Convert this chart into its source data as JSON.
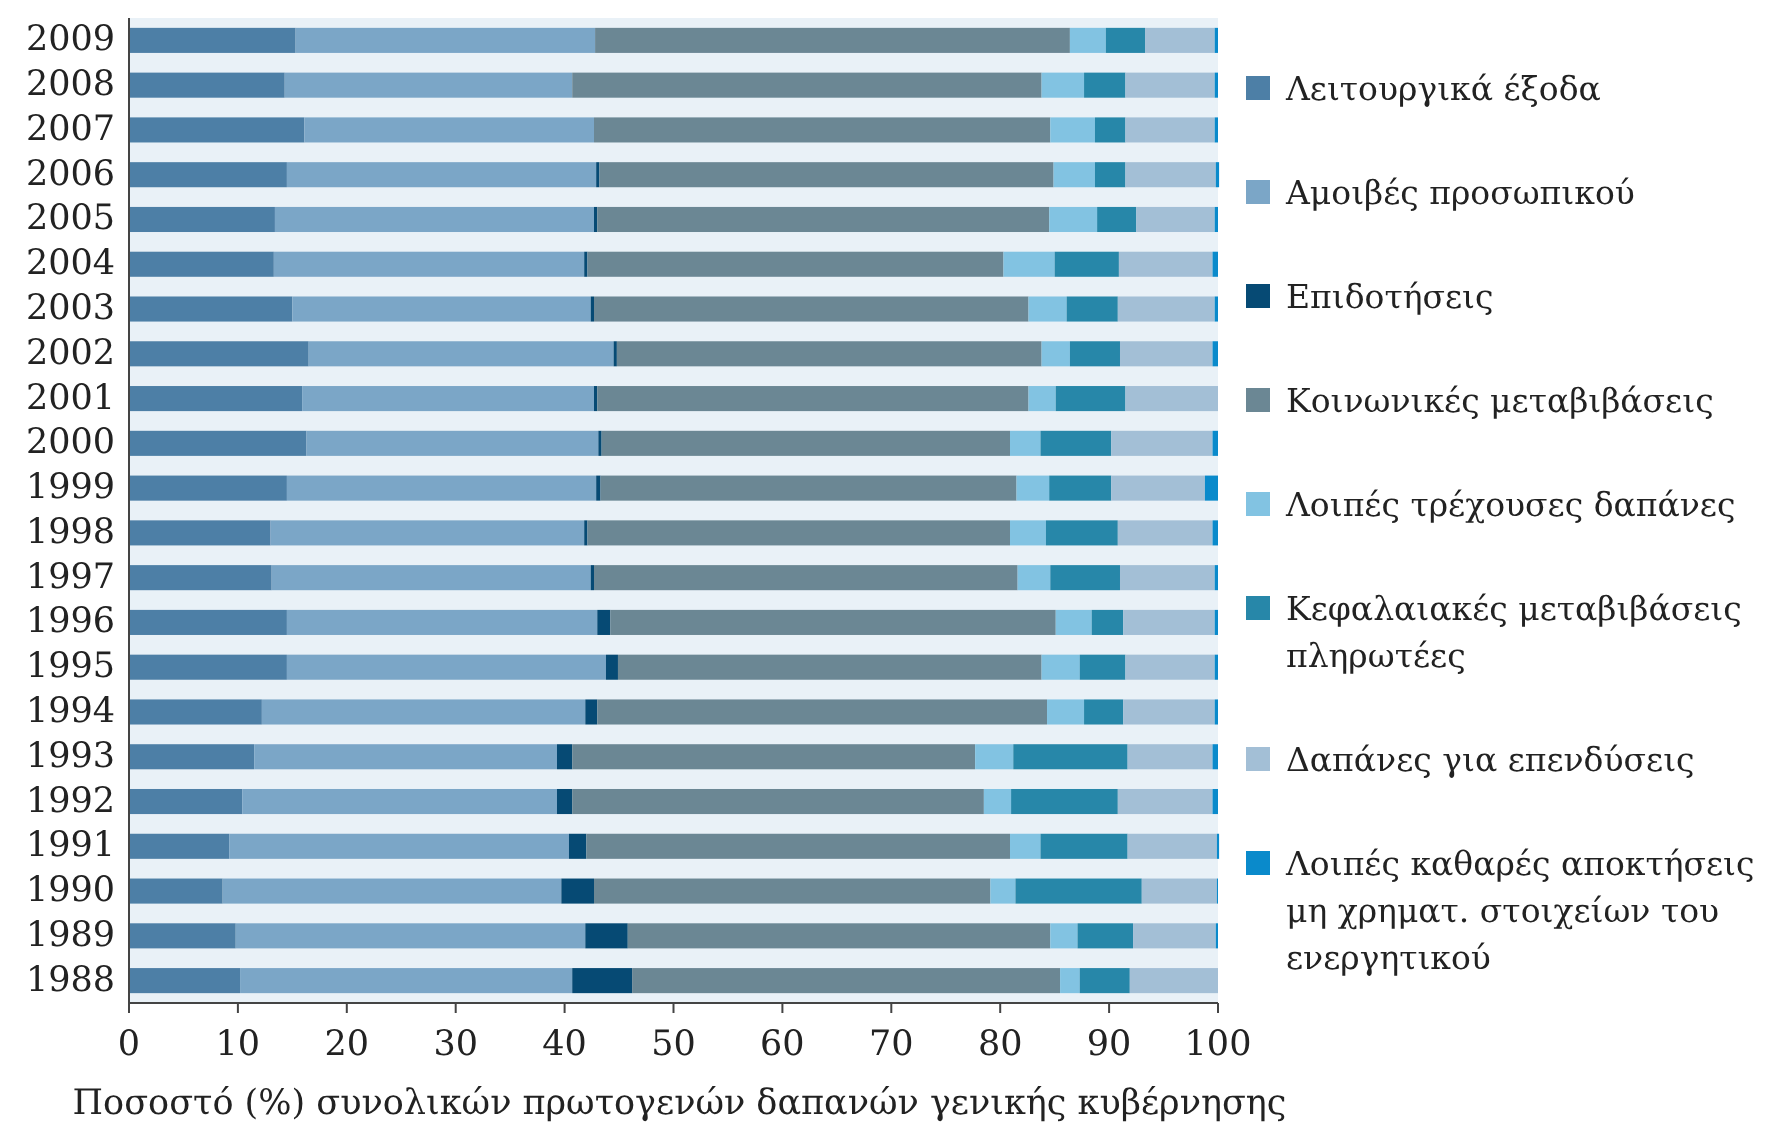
{
  "chart_data": {
    "type": "bar",
    "orientation": "horizontal",
    "stacked": true,
    "categories": [
      "2009",
      "2008",
      "2007",
      "2006",
      "2005",
      "2004",
      "2003",
      "2002",
      "2001",
      "2000",
      "1999",
      "1998",
      "1997",
      "1996",
      "1995",
      "1994",
      "1993",
      "1992",
      "1991",
      "1990",
      "1989",
      "1988"
    ],
    "series": [
      {
        "name": "Λειτουργικά έξοδα",
        "color": "#4d7fa6",
        "values": [
          15.3,
          14.3,
          16.1,
          14.5,
          13.4,
          13.3,
          15.0,
          16.5,
          15.9,
          16.3,
          14.5,
          13.0,
          13.1,
          14.5,
          14.5,
          12.2,
          11.5,
          10.4,
          9.2,
          8.6,
          9.8,
          10.2
        ]
      },
      {
        "name": "Αμοιβές προσωπικού",
        "color": "#7ba6c7",
        "values": [
          27.5,
          26.4,
          26.6,
          28.4,
          29.3,
          28.5,
          27.4,
          28.0,
          26.8,
          26.8,
          28.4,
          28.8,
          29.3,
          28.5,
          29.3,
          29.7,
          27.8,
          28.9,
          31.2,
          31.1,
          32.1,
          30.5
        ]
      },
      {
        "name": "Επιδοτήσεις",
        "color": "#064a74",
        "values": [
          0,
          0,
          0,
          0.3,
          0.3,
          0.3,
          0.3,
          0.3,
          0.3,
          0.3,
          0.4,
          0.3,
          0.3,
          1.2,
          1.1,
          1.1,
          1.4,
          1.4,
          1.6,
          3.0,
          3.9,
          5.5
        ]
      },
      {
        "name": "Κοινωνικές μεταβιβάσεις",
        "color": "#6b8794",
        "values": [
          43.6,
          43.1,
          41.9,
          41.7,
          41.5,
          38.2,
          39.9,
          39.0,
          39.6,
          37.5,
          38.2,
          38.8,
          38.9,
          40.9,
          38.9,
          41.3,
          37.0,
          37.8,
          38.9,
          36.4,
          38.8,
          39.3
        ]
      },
      {
        "name": "Λοιπές τρέχουσες δαπάνες",
        "color": "#82c3e2",
        "values": [
          3.3,
          3.9,
          4.1,
          3.8,
          4.4,
          4.7,
          3.5,
          2.6,
          2.5,
          2.8,
          3.0,
          3.3,
          3.0,
          3.3,
          3.5,
          3.4,
          3.5,
          2.5,
          2.8,
          2.3,
          2.5,
          1.8
        ]
      },
      {
        "name": "Κεφαλαιακές μεταβιβάσεις πληρωτέες",
        "color": "#2787a9",
        "values": [
          3.6,
          3.8,
          2.8,
          2.8,
          3.6,
          5.9,
          4.7,
          4.6,
          6.4,
          6.5,
          5.7,
          6.6,
          6.4,
          2.9,
          4.2,
          3.6,
          10.5,
          9.8,
          8.0,
          11.6,
          5.1,
          4.6
        ]
      },
      {
        "name": "Δαπάνες για επενδύσεις",
        "color": "#a3bfd6",
        "values": [
          6.4,
          8.2,
          8.2,
          8.3,
          7.2,
          8.6,
          8.9,
          8.5,
          8.5,
          9.3,
          8.6,
          8.7,
          8.7,
          8.4,
          8.2,
          8.4,
          7.8,
          8.7,
          8.2,
          6.9,
          7.6,
          8.1
        ]
      },
      {
        "name": "Λοιπές καθαρές αποκτήσεις μη χρηματ. στοιχείων του ενεργητικού",
        "color": "#0a8acb",
        "values": [
          0.3,
          0.3,
          0.3,
          0.3,
          0.3,
          0.5,
          0.3,
          0.5,
          0,
          0.5,
          1.2,
          0.5,
          0.3,
          0.3,
          0.3,
          0.3,
          0.5,
          0.5,
          0.2,
          0.1,
          0.2,
          0
        ]
      }
    ],
    "xlim": [
      0,
      100
    ],
    "xticks": [
      0,
      10,
      20,
      30,
      40,
      50,
      60,
      70,
      80,
      90,
      100
    ],
    "xlabel": "Ποσοστό (%) συνολικών πρωτογενών δαπανών γενικής κυβέρνησης",
    "legend": "right"
  }
}
